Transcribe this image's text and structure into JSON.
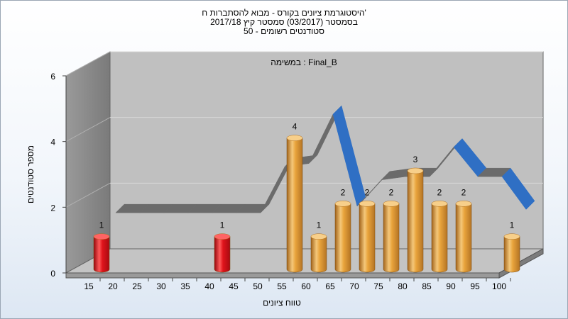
{
  "chart_data": {
    "type": "bar",
    "title_lines": [
      "היסטוגרמת ציונים בקורס - מבוא להסתברות ח'",
      "בסמסטר (03/2017) סמסטר קיץ 2017/18",
      "סטודנטים רשומים - 50"
    ],
    "annotation": "במשימה : Final_B",
    "xlabel": "טווח ציונים",
    "ylabel": "מספר סטודנטים",
    "ylim": [
      0,
      6
    ],
    "yticks": [
      "0",
      "2",
      "4",
      "6"
    ],
    "categories": [
      "15",
      "20",
      "25",
      "30",
      "35",
      "40",
      "45",
      "50",
      "55",
      "60",
      "65",
      "70",
      "75",
      "80",
      "85",
      "90",
      "95",
      "100"
    ],
    "values": [
      1,
      0,
      0,
      0,
      0,
      1,
      0,
      0,
      4,
      1,
      2,
      2,
      2,
      3,
      2,
      2,
      0,
      1
    ],
    "data_labels": [
      "1",
      "",
      "",
      "",
      "",
      "1",
      "",
      "",
      "4",
      "1",
      "2",
      "2",
      "2",
      "3",
      "2",
      "2",
      "",
      "1"
    ],
    "curve_values": [
      1.4,
      1.4,
      1.4,
      1.4,
      1.4,
      1.4,
      1.4,
      2.8,
      2.9,
      4.4,
      1.6,
      2.4,
      2.5,
      2.5,
      3.4,
      2.5,
      2.5,
      1.5
    ],
    "colors": {
      "low_bar": "#e0141c",
      "bar": "#e9a43c",
      "curve_rising": "#6b6b6b",
      "curve_falling": "#2f6fc4",
      "plot_back": "#c0c0c0",
      "plot_side": "#808080"
    },
    "grid": true
  }
}
